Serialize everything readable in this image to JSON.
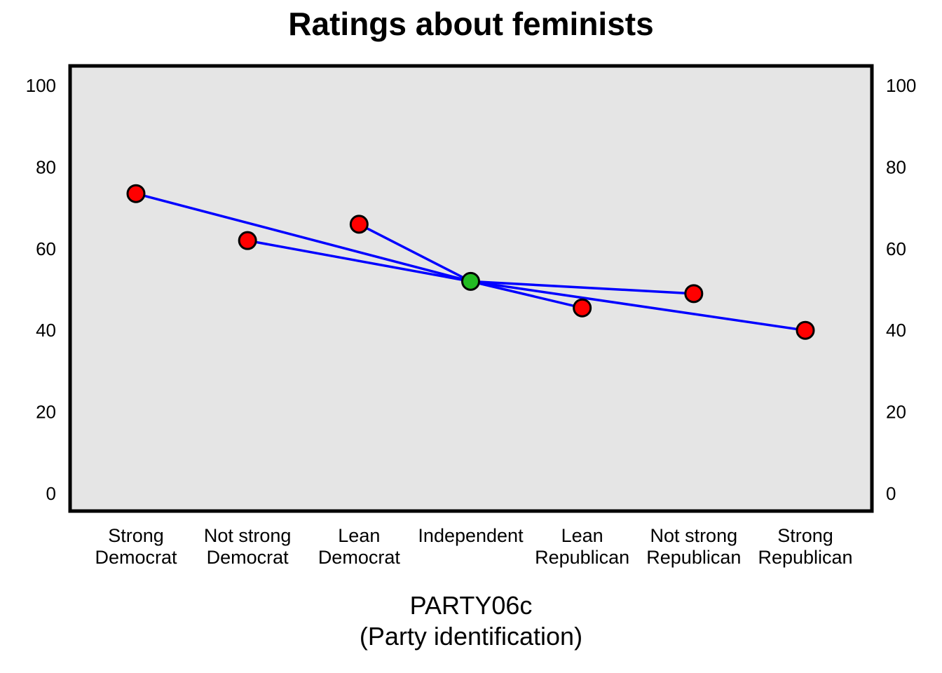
{
  "chart_data": {
    "type": "line",
    "title": "Ratings about feminists",
    "xlabel_lines": [
      "PARTY06c",
      "(Party identification)"
    ],
    "ylabel": "",
    "ylim": [
      0,
      100
    ],
    "yticks": [
      0,
      20,
      40,
      60,
      80,
      100
    ],
    "secondary_y_axis": true,
    "grid": false,
    "categories": [
      [
        "Strong",
        "Democrat"
      ],
      [
        "Not strong",
        "Democrat"
      ],
      [
        "Lean",
        "Democrat"
      ],
      [
        "Independent"
      ],
      [
        "Lean",
        "Republican"
      ],
      [
        "Not strong",
        "Republican"
      ],
      [
        "Strong",
        "Republican"
      ]
    ],
    "values": [
      73.5,
      62,
      66,
      52,
      45.5,
      49,
      40
    ],
    "center_category_index": 3,
    "connections": "each category connected to the center category",
    "colors": {
      "plot_background": "#e5e5e5",
      "line": "#0000ff",
      "point": "#ff0000",
      "center_point": "#22bb22",
      "outline": "#000000"
    }
  }
}
